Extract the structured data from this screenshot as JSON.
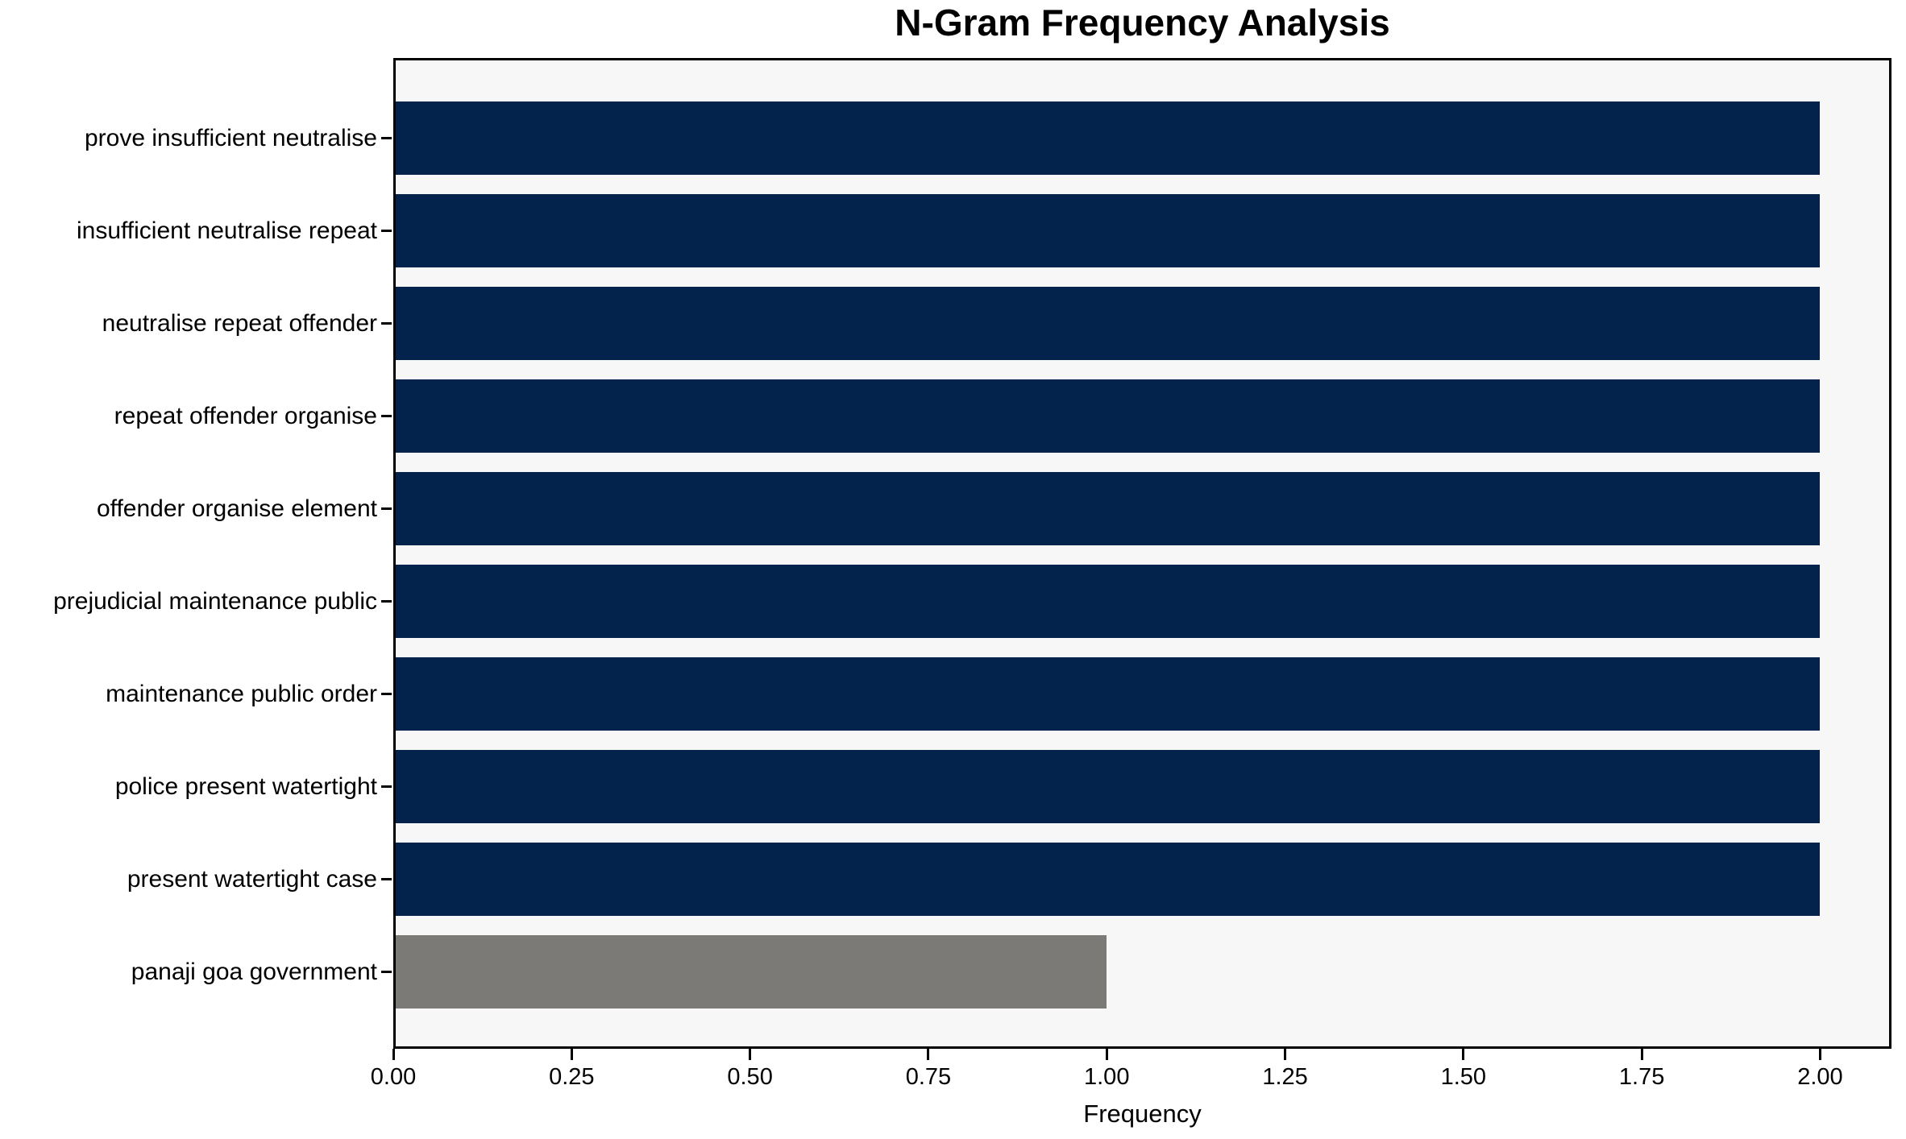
{
  "figure": {
    "background_color": "#ffffff"
  },
  "chart_data": {
    "type": "bar",
    "orientation": "horizontal",
    "title": "N-Gram Frequency Analysis",
    "xlabel": "Frequency",
    "ylabel": "",
    "categories": [
      "prove insufficient neutralise",
      "insufficient neutralise repeat",
      "neutralise repeat offender",
      "repeat offender organise",
      "offender organise element",
      "prejudicial maintenance public",
      "maintenance public order",
      "police present watertight",
      "present watertight case",
      "panaji goa government"
    ],
    "values": [
      2,
      2,
      2,
      2,
      2,
      2,
      2,
      2,
      2,
      1
    ],
    "bar_colors": [
      "#03224c",
      "#03224c",
      "#03224c",
      "#03224c",
      "#03224c",
      "#03224c",
      "#03224c",
      "#03224c",
      "#03224c",
      "#7b7a77"
    ],
    "xlim": [
      0,
      2.1
    ],
    "xticks": [
      0.0,
      0.25,
      0.5,
      0.75,
      1.0,
      1.25,
      1.5,
      1.75,
      2.0
    ],
    "xtick_labels": [
      "0.00",
      "0.25",
      "0.50",
      "0.75",
      "1.00",
      "1.25",
      "1.50",
      "1.75",
      "2.00"
    ],
    "grid": false,
    "legend": "none",
    "plot_background": "#f7f7f7",
    "axis_color": "#000000",
    "bar_height_frac": 0.8
  }
}
